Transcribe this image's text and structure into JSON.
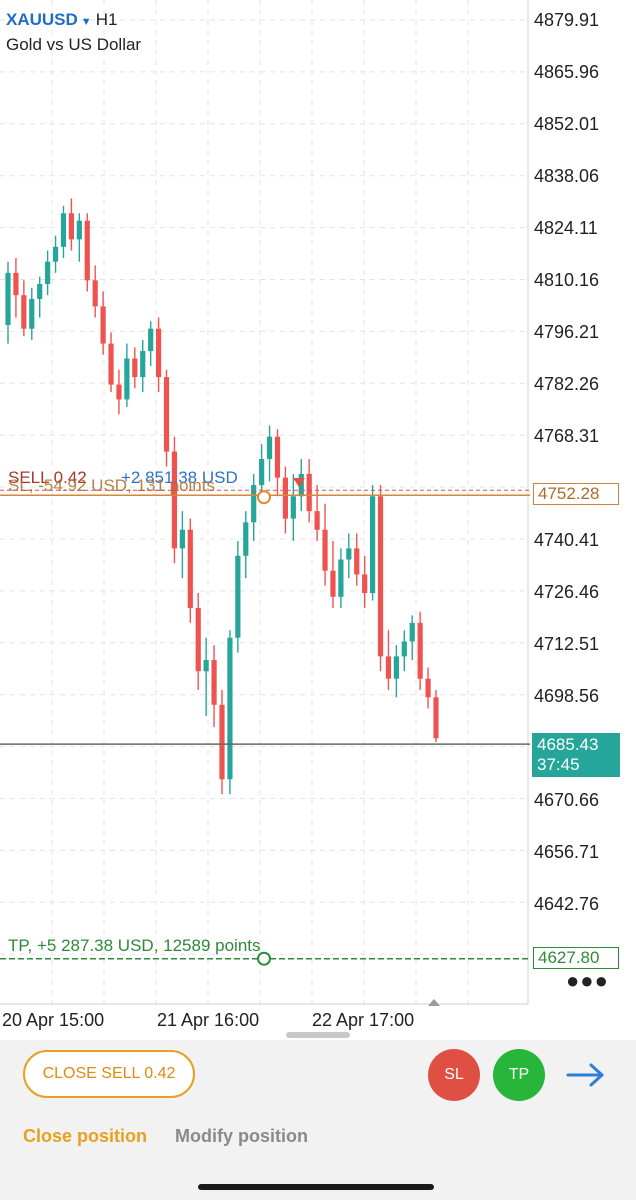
{
  "header": {
    "symbol": "XAUUSD",
    "timeframe": "H1",
    "description": "Gold vs US Dollar"
  },
  "price_axis": {
    "labels": [
      "4879.91",
      "4865.96",
      "4852.01",
      "4838.06",
      "4824.11",
      "4810.16",
      "4796.21",
      "4782.26",
      "4768.31",
      "4740.41",
      "4726.46",
      "4712.51",
      "4698.56",
      "4670.66",
      "4656.71",
      "4642.76"
    ]
  },
  "time_axis": {
    "labels": [
      "20 Apr 15:00",
      "21 Apr 16:00",
      "22 Apr 17:00"
    ]
  },
  "position_lines": {
    "sell_label": "SELL 0.42",
    "sell_profit": "+2 851.38 USD",
    "sl_label": "SL, -54.92 USD, 131 points",
    "sl_price": "4752.28",
    "tp_label": "TP, +5 287.38 USD, 12589 points",
    "tp_price": "4627.80"
  },
  "current_price": {
    "bid": "4685.43",
    "countdown": "37:45"
  },
  "chart_data": {
    "type": "candlestick",
    "symbol": "XAUUSD",
    "timeframe": "H1",
    "ylim": [
      4618,
      4884
    ],
    "bull_color": "#26a69a",
    "bear_color": "#ef5350",
    "candles": [
      [
        4798,
        4815,
        4793,
        4812
      ],
      [
        4812,
        4816,
        4800,
        4806
      ],
      [
        4806,
        4810,
        4795,
        4797
      ],
      [
        4797,
        4808,
        4794,
        4805
      ],
      [
        4805,
        4811,
        4800,
        4809
      ],
      [
        4809,
        4818,
        4806,
        4815
      ],
      [
        4815,
        4822,
        4812,
        4819
      ],
      [
        4819,
        4830,
        4816,
        4828
      ],
      [
        4828,
        4832,
        4818,
        4821
      ],
      [
        4821,
        4828,
        4815,
        4826
      ],
      [
        4826,
        4828,
        4807,
        4810
      ],
      [
        4810,
        4814,
        4800,
        4803
      ],
      [
        4803,
        4807,
        4790,
        4793
      ],
      [
        4793,
        4796,
        4780,
        4782
      ],
      [
        4782,
        4786,
        4774,
        4778
      ],
      [
        4778,
        4793,
        4776,
        4789
      ],
      [
        4789,
        4792,
        4781,
        4784
      ],
      [
        4784,
        4794,
        4780,
        4791
      ],
      [
        4791,
        4799,
        4787,
        4797
      ],
      [
        4797,
        4800,
        4780,
        4784
      ],
      [
        4784,
        4786,
        4760,
        4764
      ],
      [
        4764,
        4768,
        4734,
        4738
      ],
      [
        4738,
        4748,
        4730,
        4743
      ],
      [
        4743,
        4746,
        4718,
        4722
      ],
      [
        4722,
        4726,
        4700,
        4705
      ],
      [
        4705,
        4714,
        4693,
        4708
      ],
      [
        4708,
        4712,
        4690,
        4696
      ],
      [
        4696,
        4700,
        4672,
        4676
      ],
      [
        4676,
        4716,
        4672,
        4714
      ],
      [
        4714,
        4740,
        4710,
        4736
      ],
      [
        4736,
        4748,
        4730,
        4745
      ],
      [
        4745,
        4758,
        4740,
        4755
      ],
      [
        4755,
        4766,
        4750,
        4762
      ],
      [
        4762,
        4771,
        4756,
        4768
      ],
      [
        4768,
        4770,
        4752,
        4757
      ],
      [
        4757,
        4760,
        4742,
        4746
      ],
      [
        4746,
        4758,
        4740,
        4752
      ],
      [
        4752,
        4762,
        4748,
        4758
      ],
      [
        4758,
        4762,
        4745,
        4748
      ],
      [
        4748,
        4755,
        4740,
        4743
      ],
      [
        4743,
        4750,
        4728,
        4732
      ],
      [
        4732,
        4740,
        4722,
        4725
      ],
      [
        4725,
        4738,
        4722,
        4735
      ],
      [
        4735,
        4742,
        4730,
        4738
      ],
      [
        4738,
        4742,
        4728,
        4731
      ],
      [
        4731,
        4736,
        4722,
        4726
      ],
      [
        4726,
        4755,
        4724,
        4752
      ],
      [
        4752,
        4755,
        4705,
        4709
      ],
      [
        4709,
        4716,
        4700,
        4703
      ],
      [
        4703,
        4712,
        4698,
        4709
      ],
      [
        4709,
        4716,
        4705,
        4713
      ],
      [
        4713,
        4720,
        4708,
        4718
      ],
      [
        4718,
        4721,
        4700,
        4703
      ],
      [
        4703,
        4706,
        4695,
        4698
      ],
      [
        4698,
        4700,
        4686,
        4687
      ]
    ],
    "sl_price": 4752.28,
    "tp_price": 4627.8,
    "current_price": 4685.43
  }
}
